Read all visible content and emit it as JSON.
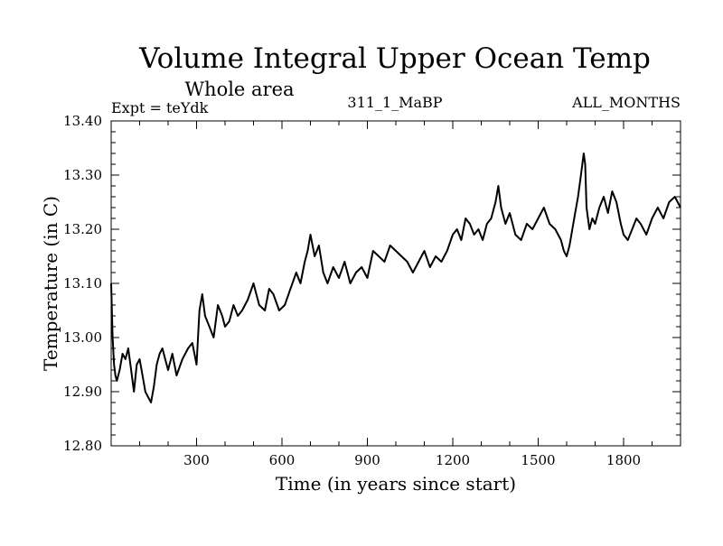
{
  "chart_data": {
    "type": "line",
    "title": "Volume Integral Upper Ocean Temp",
    "subtitle": "Whole area",
    "info_left": "Expt = teYdk",
    "info_center": "311_1_MaBP",
    "info_right": "ALL_MONTHS",
    "xlabel": "Time (in years since start)",
    "ylabel": "Temperature (in C)",
    "xlim": [
      0,
      2000
    ],
    "ylim": [
      12.8,
      13.4
    ],
    "x_ticks": [
      300,
      600,
      900,
      1200,
      1500,
      1800
    ],
    "y_ticks": [
      12.8,
      12.9,
      13.0,
      13.1,
      13.2,
      13.3,
      13.4
    ],
    "x_tick_labels": [
      "300",
      "600",
      "900",
      "1200",
      "1500",
      "1800"
    ],
    "y_tick_labels": [
      "12.80",
      "12.90",
      "13.00",
      "13.10",
      "13.20",
      "13.30",
      "13.40"
    ],
    "line_color": "#000000",
    "series": [
      {
        "name": "Volume integral upper ocean temperature",
        "x": [
          0,
          5,
          10,
          15,
          20,
          30,
          40,
          50,
          60,
          70,
          80,
          90,
          100,
          110,
          120,
          130,
          140,
          150,
          160,
          170,
          180,
          190,
          200,
          215,
          230,
          250,
          270,
          285,
          300,
          310,
          320,
          330,
          345,
          360,
          375,
          390,
          400,
          415,
          430,
          445,
          460,
          480,
          500,
          520,
          540,
          555,
          570,
          590,
          610,
          630,
          650,
          665,
          680,
          690,
          700,
          715,
          730,
          745,
          760,
          780,
          800,
          820,
          840,
          860,
          880,
          900,
          920,
          940,
          960,
          980,
          1000,
          1020,
          1040,
          1060,
          1080,
          1100,
          1120,
          1140,
          1160,
          1180,
          1200,
          1215,
          1230,
          1245,
          1260,
          1275,
          1290,
          1305,
          1320,
          1335,
          1350,
          1360,
          1370,
          1385,
          1400,
          1420,
          1440,
          1460,
          1480,
          1500,
          1520,
          1540,
          1560,
          1580,
          1590,
          1600,
          1610,
          1620,
          1630,
          1640,
          1650,
          1660,
          1665,
          1670,
          1680,
          1690,
          1700,
          1715,
          1730,
          1745,
          1760,
          1775,
          1790,
          1800,
          1815,
          1830,
          1845,
          1860,
          1880,
          1900,
          1920,
          1940,
          1960,
          1980,
          2000
        ],
        "values": [
          13.1,
          13.0,
          12.95,
          12.93,
          12.92,
          12.94,
          12.97,
          12.96,
          12.98,
          12.94,
          12.9,
          12.95,
          12.96,
          12.93,
          12.9,
          12.89,
          12.88,
          12.91,
          12.95,
          12.97,
          12.98,
          12.96,
          12.94,
          12.97,
          12.93,
          12.96,
          12.98,
          12.99,
          12.95,
          13.05,
          13.08,
          13.04,
          13.02,
          13.0,
          13.06,
          13.04,
          13.02,
          13.03,
          13.06,
          13.04,
          13.05,
          13.07,
          13.1,
          13.06,
          13.05,
          13.09,
          13.08,
          13.05,
          13.06,
          13.09,
          13.12,
          13.1,
          13.14,
          13.16,
          13.19,
          13.15,
          13.17,
          13.12,
          13.1,
          13.13,
          13.11,
          13.14,
          13.1,
          13.12,
          13.13,
          13.11,
          13.16,
          13.15,
          13.14,
          13.17,
          13.16,
          13.15,
          13.14,
          13.12,
          13.14,
          13.16,
          13.13,
          13.15,
          13.14,
          13.16,
          13.19,
          13.2,
          13.18,
          13.22,
          13.21,
          13.19,
          13.2,
          13.18,
          13.21,
          13.22,
          13.25,
          13.28,
          13.24,
          13.21,
          13.23,
          13.19,
          13.18,
          13.21,
          13.2,
          13.22,
          13.24,
          13.21,
          13.2,
          13.18,
          13.16,
          13.15,
          13.17,
          13.2,
          13.23,
          13.26,
          13.3,
          13.34,
          13.32,
          13.24,
          13.2,
          13.22,
          13.21,
          13.24,
          13.26,
          13.23,
          13.27,
          13.25,
          13.21,
          13.19,
          13.18,
          13.2,
          13.22,
          13.21,
          13.19,
          13.22,
          13.24,
          13.22,
          13.25,
          13.26,
          13.24
        ]
      }
    ]
  }
}
